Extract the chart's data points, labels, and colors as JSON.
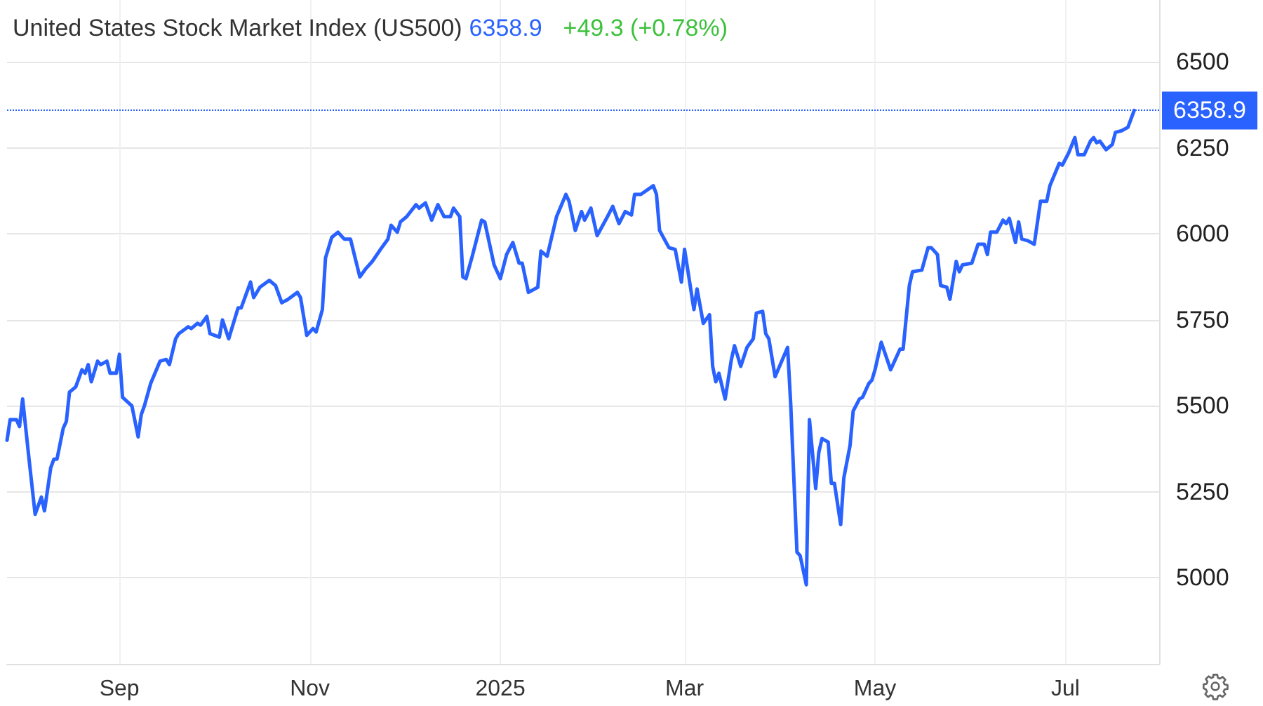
{
  "chart_data": {
    "type": "line",
    "title": "United States Stock Market Index (US500)",
    "subtitle": "6358.9",
    "annotations": [
      "+49.3 (+0.78%)"
    ],
    "x": [
      "2024-07-27",
      "2024-07-28",
      "2024-07-30",
      "2024-07-31",
      "2024-08-01",
      "2024-08-03",
      "2024-08-05",
      "2024-08-07",
      "2024-08-08",
      "2024-08-10",
      "2024-08-11",
      "2024-08-12",
      "2024-08-14",
      "2024-08-15",
      "2024-08-16",
      "2024-08-18",
      "2024-08-20",
      "2024-08-21",
      "2024-08-22",
      "2024-08-23",
      "2024-08-25",
      "2024-08-26",
      "2024-08-28",
      "2024-08-29",
      "2024-08-31",
      "2024-09-01",
      "2024-09-02",
      "2024-09-05",
      "2024-09-07",
      "2024-09-08",
      "2024-09-09",
      "2024-09-11",
      "2024-09-14",
      "2024-09-16",
      "2024-09-17",
      "2024-09-19",
      "2024-09-20",
      "2024-09-23",
      "2024-09-24",
      "2024-09-26",
      "2024-09-27",
      "2024-09-29",
      "2024-09-30",
      "2024-10-03",
      "2024-10-04",
      "2024-10-06",
      "2024-10-09",
      "2024-10-10",
      "2024-10-13",
      "2024-10-14",
      "2024-10-16",
      "2024-10-19",
      "2024-10-21",
      "2024-10-23",
      "2024-10-25",
      "2024-10-28",
      "2024-10-29",
      "2024-10-31",
      "2024-11-02",
      "2024-11-03",
      "2024-11-05",
      "2024-11-06",
      "2024-11-08",
      "2024-11-10",
      "2024-11-12",
      "2024-11-14",
      "2024-11-17",
      "2024-11-19",
      "2024-11-21",
      "2024-11-24",
      "2024-11-26",
      "2024-11-27",
      "2024-11-29",
      "2024-11-30",
      "2024-12-02",
      "2024-12-05",
      "2024-12-06",
      "2024-12-08",
      "2024-12-10",
      "2024-12-12",
      "2024-12-14",
      "2024-12-16",
      "2024-12-17",
      "2024-12-19",
      "2024-12-20",
      "2024-12-21",
      "2024-12-23",
      "2024-12-26",
      "2024-12-27",
      "2024-12-30",
      "2025-01-01",
      "2025-01-03",
      "2025-01-05",
      "2025-01-07",
      "2025-01-08",
      "2025-01-10",
      "2025-01-13",
      "2025-01-14",
      "2025-01-16",
      "2025-01-19",
      "2025-01-22",
      "2025-01-23",
      "2025-01-25",
      "2025-01-27",
      "2025-01-28",
      "2025-01-30",
      "2025-02-01",
      "2025-02-04",
      "2025-02-06",
      "2025-02-08",
      "2025-02-10",
      "2025-02-12",
      "2025-02-13",
      "2025-02-15",
      "2025-02-19",
      "2025-02-20",
      "2025-02-21",
      "2025-02-24",
      "2025-02-26",
      "2025-02-28",
      "2025-03-01",
      "2025-03-04",
      "2025-03-05",
      "2025-03-07",
      "2025-03-09",
      "2025-03-10",
      "2025-03-11",
      "2025-03-12",
      "2025-03-14",
      "2025-03-16",
      "2025-03-17",
      "2025-03-19",
      "2025-03-21",
      "2025-03-23",
      "2025-03-24",
      "2025-03-26",
      "2025-03-27",
      "2025-03-28",
      "2025-03-30",
      "2025-04-03",
      "2025-04-04",
      "2025-04-06",
      "2025-04-07",
      "2025-04-09",
      "2025-04-10",
      "2025-04-12",
      "2025-04-13",
      "2025-04-14",
      "2025-04-16",
      "2025-04-17",
      "2025-04-18",
      "2025-04-20",
      "2025-04-21",
      "2025-04-23",
      "2025-04-24",
      "2025-04-26",
      "2025-04-27",
      "2025-04-29",
      "2025-04-30",
      "2025-05-01",
      "2025-05-03",
      "2025-05-06",
      "2025-05-09",
      "2025-05-10",
      "2025-05-12",
      "2025-05-13",
      "2025-05-16",
      "2025-05-18",
      "2025-05-19",
      "2025-05-21",
      "2025-05-22",
      "2025-05-24",
      "2025-05-25",
      "2025-05-27",
      "2025-05-28",
      "2025-05-29",
      "2025-06-01",
      "2025-06-03",
      "2025-06-05",
      "2025-06-06",
      "2025-06-07",
      "2025-06-09",
      "2025-06-11",
      "2025-06-12",
      "2025-06-13",
      "2025-06-15",
      "2025-06-16",
      "2025-06-17",
      "2025-06-19",
      "2025-06-21",
      "2025-06-23",
      "2025-06-25",
      "2025-06-26",
      "2025-06-29",
      "2025-06-30",
      "2025-07-02",
      "2025-07-04",
      "2025-07-05",
      "2025-07-07",
      "2025-07-09",
      "2025-07-10",
      "2025-07-11",
      "2025-07-12",
      "2025-07-14",
      "2025-07-16",
      "2025-07-17",
      "2025-07-19",
      "2025-07-21",
      "2025-07-23"
    ],
    "values": [
      5400,
      5460,
      5460,
      5440,
      5520,
      5350,
      5185,
      5235,
      5195,
      5320,
      5345,
      5345,
      5435,
      5455,
      5540,
      5555,
      5605,
      5595,
      5620,
      5570,
      5630,
      5620,
      5630,
      5595,
      5595,
      5650,
      5525,
      5500,
      5410,
      5475,
      5500,
      5565,
      5630,
      5635,
      5620,
      5695,
      5710,
      5730,
      5725,
      5740,
      5735,
      5760,
      5710,
      5700,
      5750,
      5695,
      5785,
      5785,
      5860,
      5815,
      5845,
      5865,
      5850,
      5800,
      5810,
      5830,
      5815,
      5705,
      5725,
      5715,
      5780,
      5930,
      5990,
      6005,
      5985,
      5985,
      5875,
      5900,
      5920,
      5960,
      5985,
      6025,
      6005,
      6035,
      6050,
      6085,
      6075,
      6090,
      6040,
      6085,
      6050,
      6050,
      6075,
      6050,
      5875,
      5870,
      5935,
      6040,
      6035,
      5910,
      5870,
      5940,
      5975,
      5915,
      5915,
      5830,
      5845,
      5950,
      5935,
      6050,
      6115,
      6095,
      6010,
      6065,
      6040,
      6075,
      5995,
      6045,
      6080,
      6030,
      6065,
      6055,
      6115,
      6115,
      6140,
      6115,
      6010,
      5960,
      5955,
      5860,
      5955,
      5780,
      5840,
      5740,
      5765,
      5615,
      5570,
      5595,
      5520,
      5635,
      5675,
      5615,
      5670,
      5695,
      5770,
      5775,
      5710,
      5695,
      5585,
      5670,
      5505,
      5075,
      5065,
      4980,
      5460,
      5260,
      5365,
      5405,
      5395,
      5275,
      5275,
      5155,
      5290,
      5385,
      5485,
      5520,
      5525,
      5565,
      5575,
      5605,
      5685,
      5605,
      5665,
      5665,
      5850,
      5890,
      5895,
      5960,
      5960,
      5940,
      5850,
      5845,
      5810,
      5920,
      5890,
      5910,
      5915,
      5970,
      5970,
      5940,
      6005,
      6005,
      6040,
      6030,
      6045,
      5975,
      6035,
      5985,
      5980,
      5970,
      6095,
      6095,
      6140,
      6205,
      6200,
      6235,
      6280,
      6230,
      6230,
      6270,
      6280,
      6265,
      6270,
      6245,
      6260,
      6295,
      6300,
      6310,
      6358.9
    ],
    "color": "#2962ff",
    "xlim": [
      "2024-07-27",
      "2025-07-31"
    ],
    "ylim": [
      4750,
      6680
    ],
    "xticks": [
      {
        "value": "2024-09-01",
        "label": "Sep"
      },
      {
        "value": "2024-11-01",
        "label": "Nov"
      },
      {
        "value": "2025-01-01",
        "label": "2025"
      },
      {
        "value": "2025-03-01",
        "label": "Mar"
      },
      {
        "value": "2025-05-01",
        "label": "May"
      },
      {
        "value": "2025-07-01",
        "label": "Jul"
      }
    ],
    "yticks": [
      5000,
      5250,
      5500,
      5750,
      6000,
      6250,
      6500
    ],
    "grid": true,
    "ref_lines": [
      {
        "axis": "y",
        "value": 6358.9,
        "label": "6358.9",
        "color": "#2962ff",
        "line_style": "dotted"
      }
    ]
  }
}
